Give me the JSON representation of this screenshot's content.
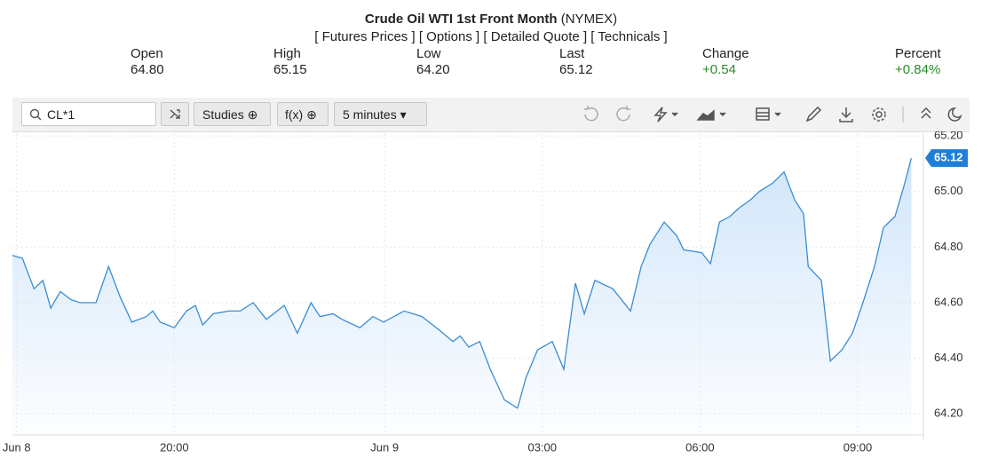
{
  "header": {
    "title": "Crude Oil WTI 1st Front Month",
    "exchange": "(NYMEX)",
    "links": [
      "[ Futures Prices ]",
      "[ Options ]",
      "[ Detailed Quote ]",
      "[ Technicals ]"
    ]
  },
  "quote": {
    "labels": [
      "Open",
      "High",
      "Low",
      "Last",
      "Change",
      "Percent"
    ],
    "values": [
      "64.80",
      "65.15",
      "64.20",
      "65.12",
      "+0.54",
      "+0.84%"
    ]
  },
  "toolbar": {
    "symbol": "CL*1",
    "buttons": [
      "Studies",
      "f(x)",
      "5 minutes"
    ]
  },
  "chart_data": {
    "type": "area",
    "color": "#3a8dd3",
    "fill": "#cfe4fa",
    "grid": true,
    "x": [
      16.92,
      17.11,
      17.33,
      17.5,
      17.65,
      17.83,
      18.04,
      18.21,
      18.51,
      18.75,
      18.97,
      19.19,
      19.47,
      19.59,
      19.73,
      20.0,
      20.23,
      20.4,
      20.54,
      20.74,
      21.04,
      21.25,
      21.5,
      21.75,
      22.09,
      22.34,
      22.6,
      22.77,
      23.02,
      23.19,
      23.53,
      23.78,
      23.98,
      24.37,
      24.71,
      25.05,
      25.3,
      25.44,
      25.6,
      25.81,
      26.01,
      26.28,
      26.53,
      26.69,
      26.91,
      27.19,
      27.41,
      27.63,
      27.8,
      28.0,
      28.34,
      28.68,
      28.88,
      29.05,
      29.32,
      29.56,
      29.69,
      30.03,
      30.2,
      30.37,
      30.57,
      30.74,
      30.96,
      31.13,
      31.38,
      31.6,
      31.8,
      31.97,
      32.06,
      32.31,
      32.48,
      32.7,
      32.9,
      33.1,
      33.32,
      33.49,
      33.71,
      33.88,
      34.02
    ],
    "values": [
      64.77,
      64.76,
      64.65,
      64.68,
      64.58,
      64.64,
      64.61,
      64.6,
      64.6,
      64.73,
      64.62,
      64.53,
      64.55,
      64.57,
      64.53,
      64.51,
      64.57,
      64.59,
      64.52,
      64.56,
      64.57,
      64.57,
      64.6,
      64.54,
      64.59,
      64.49,
      64.6,
      64.55,
      64.56,
      64.54,
      64.51,
      64.55,
      64.53,
      64.57,
      64.55,
      64.5,
      64.46,
      64.48,
      64.44,
      64.46,
      64.36,
      64.25,
      64.22,
      64.33,
      64.43,
      64.46,
      64.36,
      64.67,
      64.56,
      64.68,
      64.65,
      64.57,
      64.73,
      64.81,
      64.89,
      64.84,
      64.79,
      64.78,
      64.74,
      64.89,
      64.91,
      64.94,
      64.97,
      65.0,
      65.03,
      65.07,
      64.97,
      64.92,
      64.73,
      64.68,
      64.39,
      64.43,
      64.49,
      64.6,
      64.73,
      64.87,
      64.91,
      65.02,
      65.12
    ],
    "xlim": [
      16.92,
      34.25
    ],
    "xticks": [
      {
        "value": 17,
        "label": "Jun 8"
      },
      {
        "value": 20,
        "label": "20:00"
      },
      {
        "value": 24,
        "label": "Jun 9"
      },
      {
        "value": 27,
        "label": "03:00"
      },
      {
        "value": 30,
        "label": "06:00"
      },
      {
        "value": 33,
        "label": "09:00"
      }
    ],
    "ylim": [
      64.124,
      65.21
    ],
    "yticks": [
      {
        "value": 64.2,
        "label": "64.20"
      },
      {
        "value": 64.4,
        "label": "64.40"
      },
      {
        "value": 64.6,
        "label": "64.60"
      },
      {
        "value": 64.8,
        "label": "64.80"
      },
      {
        "value": 65.0,
        "label": "65.00"
      },
      {
        "value": 65.2,
        "label": "65.20"
      }
    ]
  }
}
